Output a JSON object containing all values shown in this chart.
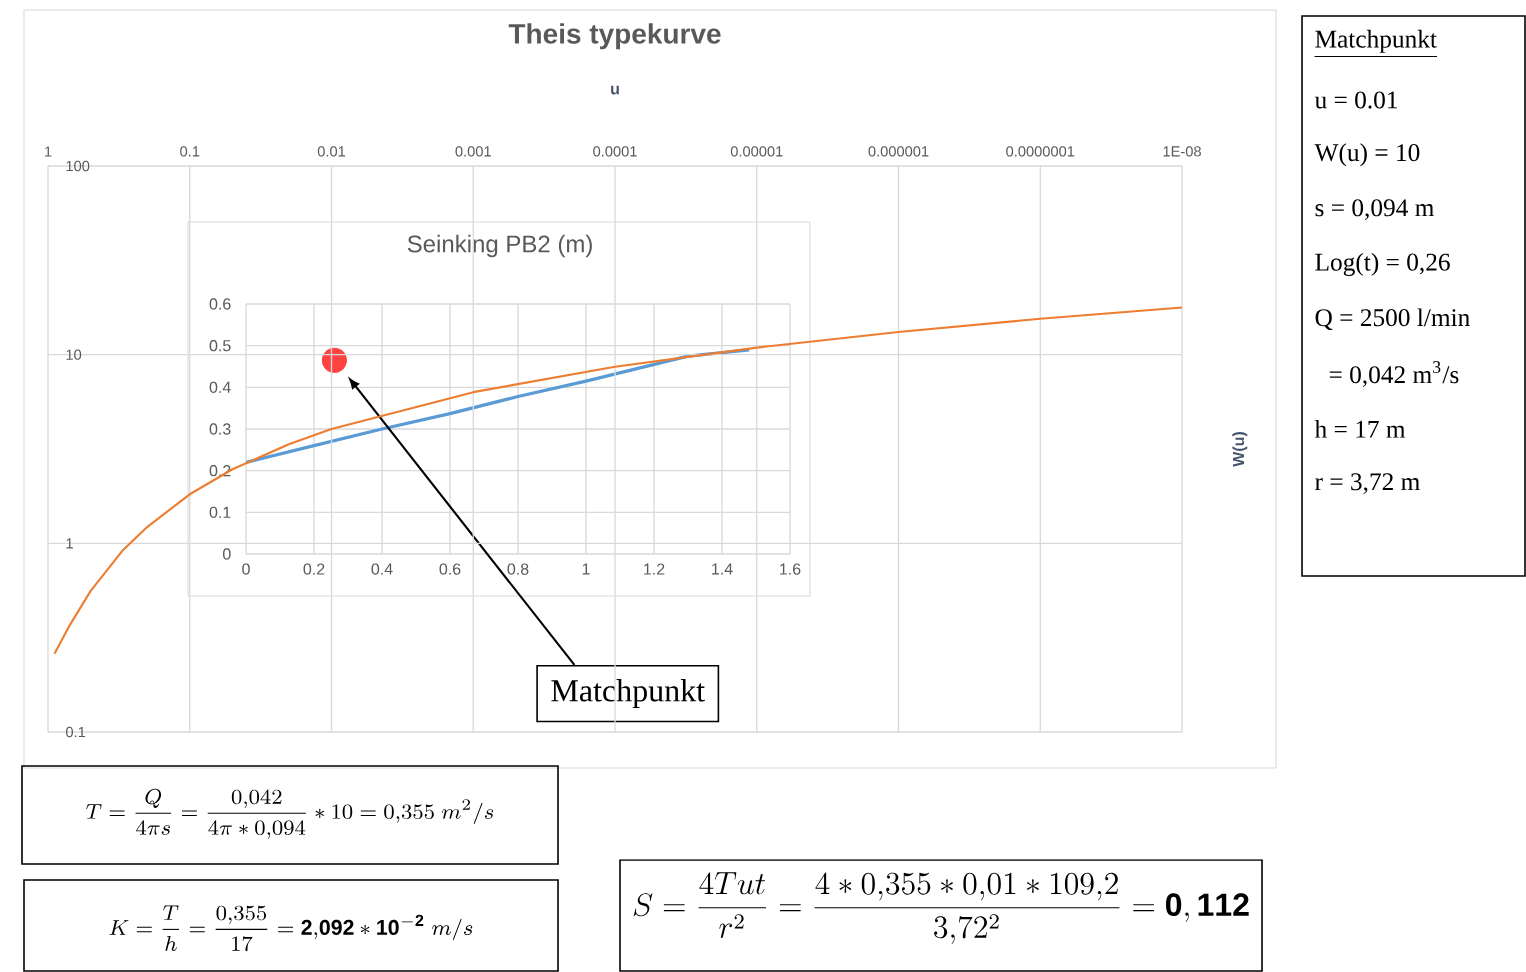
{
  "chart_data": [
    {
      "type": "line",
      "title": "Theis typekurve",
      "xlabel": "u",
      "ylabel": "W(u)",
      "x": [
        0.9,
        0.7,
        0.5,
        0.3,
        0.2,
        0.1,
        0.05,
        0.02,
        0.01,
        0.001,
        0.0001,
        1e-05,
        1e-06,
        1e-07,
        1e-08
      ],
      "series": [
        {
          "color": "#ed7d31",
          "values": [
            0.26,
            0.37,
            0.56,
            0.91,
            1.22,
            1.82,
            2.47,
            3.35,
            4.04,
            6.33,
            8.63,
            10.9,
            13.2,
            15.5,
            17.8
          ]
        }
      ],
      "xlim": [
        1,
        1e-08
      ],
      "ylim": [
        0.1,
        100
      ],
      "xticks": [
        1,
        0.1,
        0.01,
        0.001,
        0.0001,
        {
          "value": 1e-05,
          "label": "0.00001"
        },
        {
          "value": 1e-06,
          "label": "0.000001"
        },
        {
          "value": 1e-07,
          "label": "0.0000001"
        },
        {
          "value": 1e-08,
          "label": "1E-08"
        }
      ],
      "yticks": [
        0.1,
        1,
        10,
        100
      ],
      "log": "xy",
      "grid": true
    },
    {
      "type": "line",
      "title": "Seinking PB2 (m)",
      "x": [
        0,
        0.2,
        0.4,
        0.6,
        0.8,
        1,
        1.2,
        1.3,
        1.48
      ],
      "series": [
        {
          "color": "#5b9bd5",
          "values": [
            0.22,
            0.26,
            0.3,
            0.337,
            0.378,
            0.415,
            0.455,
            0.475,
            0.49
          ]
        },
        {
          "type": "scatter",
          "color": "#ff4343",
          "marker": "circle",
          "x": [
            0.26
          ],
          "values": [
            0.465
          ]
        }
      ],
      "xlim": [
        0,
        1.6
      ],
      "ylim": [
        0,
        0.6
      ],
      "xticks": [
        0,
        0.2,
        0.4,
        0.6,
        0.8,
        1,
        1.2,
        1.4,
        1.6
      ],
      "yticks": [
        0,
        0.1,
        0.2,
        0.3,
        0.4,
        0.5,
        0.6
      ],
      "grid": true,
      "annotations": [
        "Matchpunkt"
      ]
    },
    {
      "type": "other",
      "title": "Matchpunkt",
      "annotations": [
        "u = 0.01",
        "W(u) = 10",
        "s = 0,094 m",
        "Log(t) = 0,26",
        "Q = 2500 l/min",
        "= 0,042 m$^{3}$/s",
        "h = 17 m",
        "r = 3,72 m"
      ]
    },
    {
      "type": "other",
      "annotations": [
        "T=\\frac{Q}{4\\pi s}=\\frac{0{,}042}{4\\pi*0{,}094}*10=0{,}355\\;m^2/s",
        "K=\\frac{T}{h}=\\frac{0{,}355}{17}=\\mathbf{2{,}092*10^{-2}}\\;m/s",
        "S=\\frac{4Tut}{r^2}=\\frac{4*0{,}355*0{,}01*109{,}2}{3{,}72^2}=\\mathbf{0,112}"
      ]
    }
  ]
}
